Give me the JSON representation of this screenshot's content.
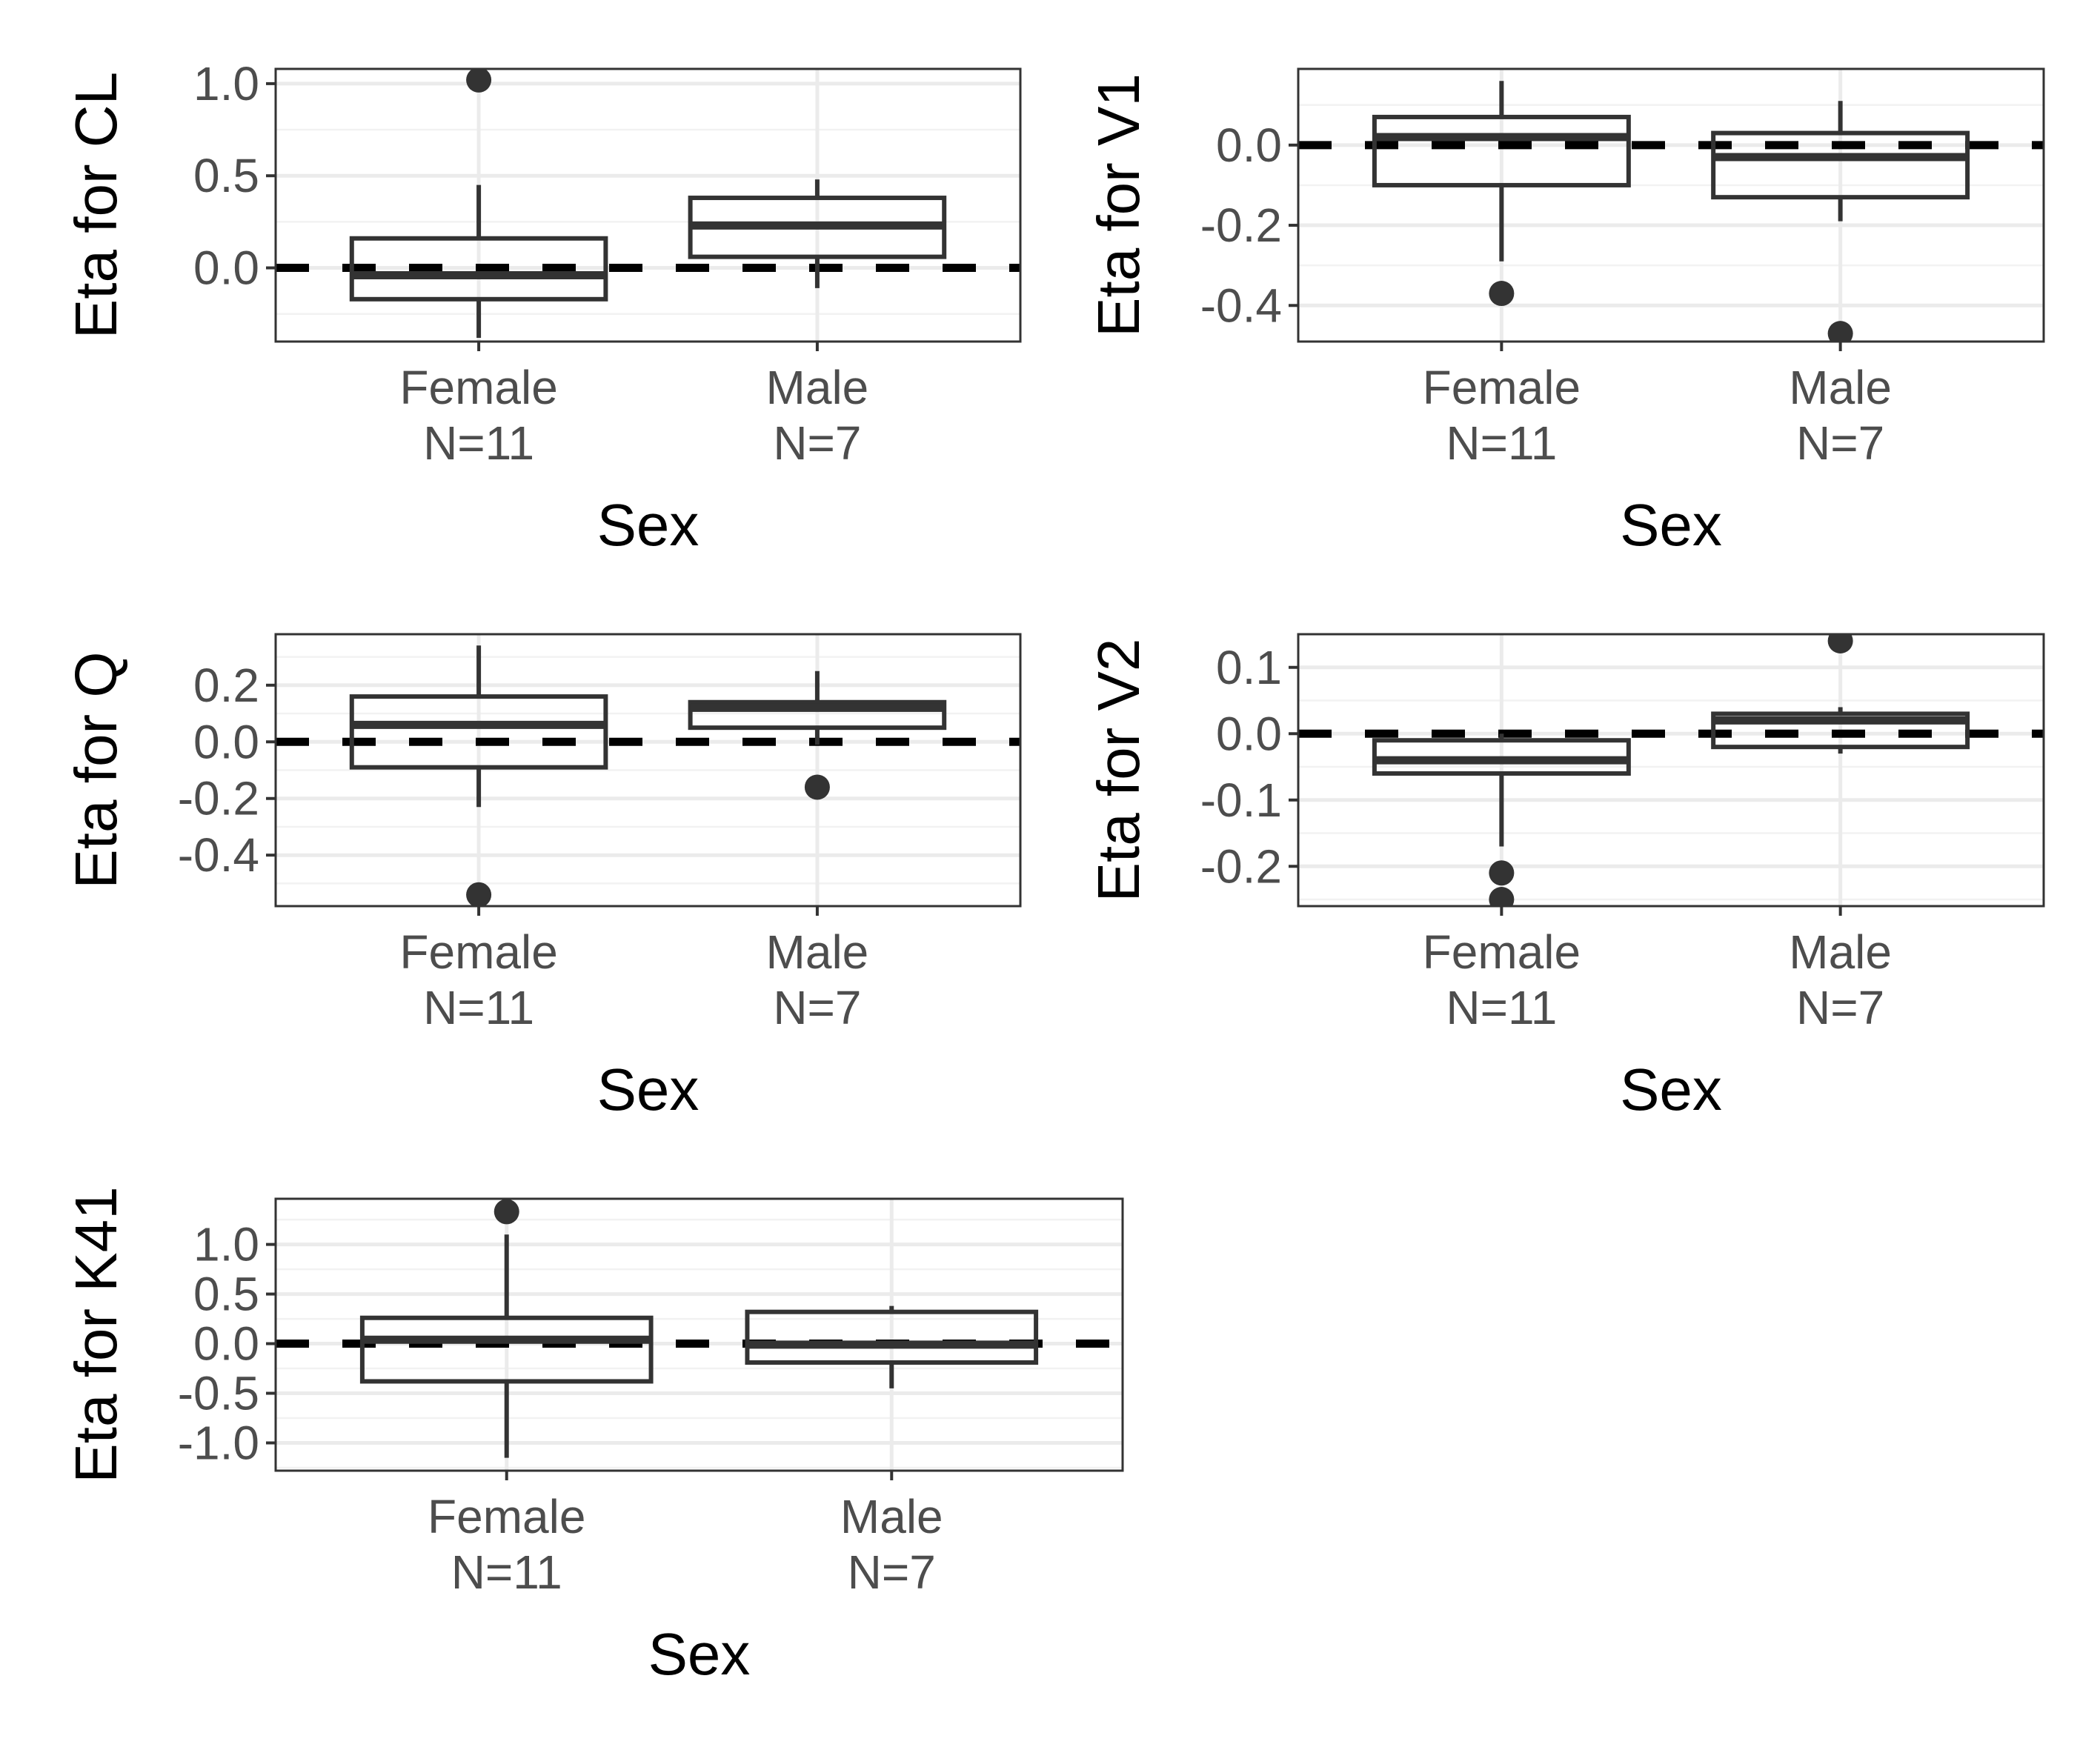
{
  "chart_data": [
    {
      "type": "boxplot",
      "ylabel": "Eta for CL",
      "xlabel": "Sex",
      "categories": [
        "Female\nN=11",
        "Male\nN=7"
      ],
      "ylim": [
        -0.4,
        1.08
      ],
      "yticks": [
        0.0,
        0.5,
        1.0
      ],
      "yticklabels": [
        "0.0",
        "0.5",
        "1.0"
      ],
      "reference_line": 0,
      "grid": true,
      "boxes": [
        {
          "whisker_low": -0.38,
          "q1": -0.17,
          "median": -0.04,
          "q3": 0.16,
          "whisker_high": 0.45,
          "outliers": [
            1.02
          ]
        },
        {
          "whisker_low": -0.11,
          "q1": 0.06,
          "median": 0.23,
          "q3": 0.38,
          "whisker_high": 0.48,
          "outliers": []
        }
      ]
    },
    {
      "type": "boxplot",
      "ylabel": "Eta for V1",
      "xlabel": "Sex",
      "categories": [
        "Female\nN=11",
        "Male\nN=7"
      ],
      "ylim": [
        -0.49,
        0.19
      ],
      "yticks": [
        -0.4,
        -0.2,
        0.0
      ],
      "yticklabels": [
        "-0.4",
        "-0.2",
        "0.0"
      ],
      "reference_line": 0,
      "grid": true,
      "boxes": [
        {
          "whisker_low": -0.29,
          "q1": -0.1,
          "median": 0.02,
          "q3": 0.07,
          "whisker_high": 0.16,
          "outliers": [
            -0.37
          ]
        },
        {
          "whisker_low": -0.19,
          "q1": -0.13,
          "median": -0.03,
          "q3": 0.03,
          "whisker_high": 0.11,
          "outliers": [
            -0.47
          ]
        }
      ]
    },
    {
      "type": "boxplot",
      "ylabel": "Eta for Q",
      "xlabel": "Sex",
      "categories": [
        "Female\nN=11",
        "Male\nN=7"
      ],
      "ylim": [
        -0.58,
        0.38
      ],
      "yticks": [
        -0.4,
        -0.2,
        0.0,
        0.2
      ],
      "yticklabels": [
        "-0.4",
        "-0.2",
        "0.0",
        "0.2"
      ],
      "reference_line": 0,
      "grid": true,
      "boxes": [
        {
          "whisker_low": -0.23,
          "q1": -0.09,
          "median": 0.06,
          "q3": 0.16,
          "whisker_high": 0.34,
          "outliers": [
            -0.54
          ]
        },
        {
          "whisker_low": -0.01,
          "q1": 0.05,
          "median": 0.12,
          "q3": 0.14,
          "whisker_high": 0.25,
          "outliers": [
            -0.16
          ]
        }
      ]
    },
    {
      "type": "boxplot",
      "ylabel": "Eta for V2",
      "xlabel": "Sex",
      "categories": [
        "Female\nN=11",
        "Male\nN=7"
      ],
      "ylim": [
        -0.26,
        0.15
      ],
      "yticks": [
        -0.2,
        -0.1,
        0.0,
        0.1
      ],
      "yticklabels": [
        "-0.2",
        "-0.1",
        "0.0",
        "0.1"
      ],
      "reference_line": 0,
      "grid": true,
      "boxes": [
        {
          "whisker_low": -0.17,
          "q1": -0.06,
          "median": -0.04,
          "q3": -0.01,
          "whisker_high": 0.0,
          "outliers": [
            -0.21,
            -0.25
          ]
        },
        {
          "whisker_low": -0.03,
          "q1": -0.02,
          "median": 0.02,
          "q3": 0.03,
          "whisker_high": 0.04,
          "outliers": [
            0.14
          ]
        }
      ]
    },
    {
      "type": "boxplot",
      "ylabel": "Eta for K41",
      "xlabel": "Sex",
      "categories": [
        "Female\nN=11",
        "Male\nN=7"
      ],
      "ylim": [
        -1.28,
        1.46
      ],
      "yticks": [
        -1.0,
        -0.5,
        0.0,
        0.5,
        1.0
      ],
      "yticklabels": [
        "-1.0",
        "-0.5",
        "0.0",
        "0.5",
        "1.0"
      ],
      "reference_line": 0,
      "grid": true,
      "boxes": [
        {
          "whisker_low": -1.15,
          "q1": -0.38,
          "median": 0.04,
          "q3": 0.26,
          "whisker_high": 1.1,
          "outliers": [
            1.33
          ]
        },
        {
          "whisker_low": -0.45,
          "q1": -0.19,
          "median": -0.01,
          "q3": 0.32,
          "whisker_high": 0.38,
          "outliers": []
        }
      ]
    }
  ]
}
